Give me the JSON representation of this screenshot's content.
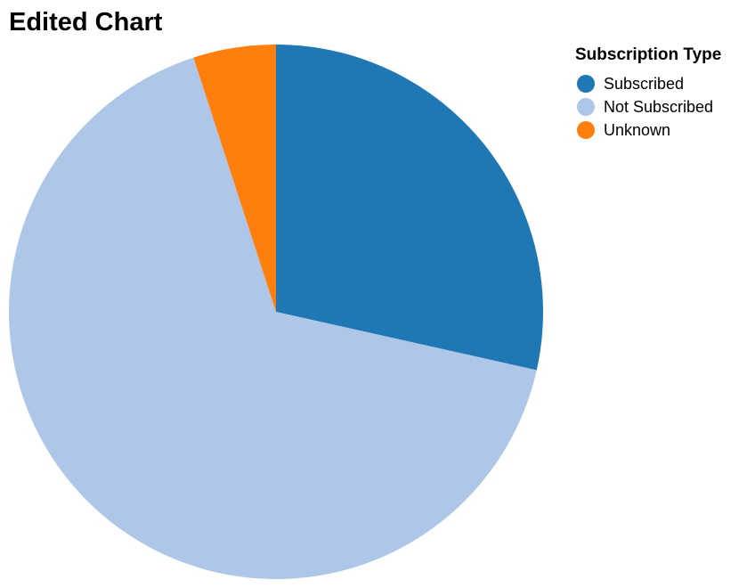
{
  "chart_data": {
    "type": "pie",
    "title": "Edited Chart",
    "legend": {
      "title": "Subscription Type",
      "placement": "top-right"
    },
    "slices": [
      {
        "label": "Subscribed",
        "value": 28.5,
        "color": "#1f77b4"
      },
      {
        "label": "Not Subscribed",
        "value": 66.5,
        "color": "#aec7e8"
      },
      {
        "label": "Unknown",
        "value": 5.0,
        "color": "#ff7f0e"
      }
    ]
  }
}
